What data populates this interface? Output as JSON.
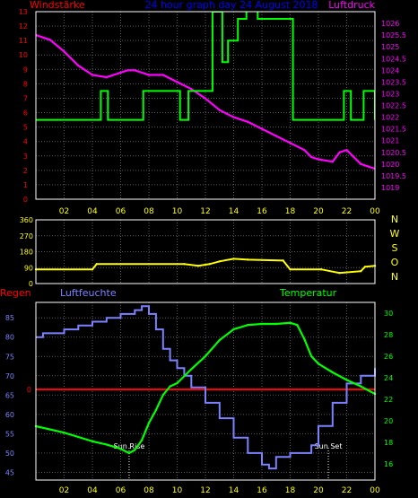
{
  "header": {
    "left_label": "Windstärke",
    "title": "24 hour graph day 24 August 2018",
    "right_label": "Luftdruck"
  },
  "colors": {
    "background": "#000000",
    "frame": "#ffffff",
    "grid": "#5a5a5a",
    "axis_text": "#ffff00",
    "wind": "#00ff00",
    "pressure": "#ff00ff",
    "direction": "#ffff00",
    "humidity": "#7c82ff",
    "temperature": "#00ff00",
    "rain": "#ff0000",
    "wind_label": "#ff0000",
    "title": "#0000ff",
    "pressure_label": "#ff00ff",
    "humidity_label": "#7c82ff",
    "temperature_label": "#00ff00",
    "rain_label": "#ff0000",
    "compass": "#ffff00",
    "sun": "#ffffff"
  },
  "chart_data": [
    {
      "id": "wind_pressure",
      "type": "line",
      "xlim": [
        0,
        24
      ],
      "x_tick_labels": [
        "02",
        "04",
        "06",
        "08",
        "10",
        "12",
        "14",
        "16",
        "18",
        "20",
        "22",
        "00"
      ],
      "grid": true,
      "left_axis": {
        "label": "Windstärke",
        "ylim": [
          0,
          13
        ],
        "ticks": [
          "0",
          "1",
          "2",
          "3",
          "4",
          "5",
          "6",
          "7",
          "8",
          "9",
          "10",
          "11",
          "12",
          "13"
        ]
      },
      "right_axis": {
        "label": "Luftdruck",
        "ylim": [
          1018.5,
          1026.5
        ],
        "ticks": [
          "1019",
          "1019.5",
          "1020",
          "1020.5",
          "1021",
          "1021.5",
          "1022",
          "1022.5",
          "1023",
          "1023.5",
          "1024",
          "1024.5",
          "1025",
          "1025.5",
          "1026"
        ]
      },
      "series": [
        {
          "name": "Windstärke",
          "axis": "left",
          "step": true,
          "x": [
            0,
            4.6,
            5.1,
            7.6,
            10.2,
            10.8,
            12.5,
            13.2,
            13.6,
            14.3,
            14.9,
            15.7,
            18.2,
            21.8,
            22.3,
            23.2,
            24
          ],
          "values": [
            5.5,
            7.5,
            5.5,
            7.5,
            5.5,
            7.5,
            13,
            9.5,
            11,
            12.5,
            15,
            12.5,
            5.5,
            7.5,
            5.5,
            7.5,
            5.5
          ]
        },
        {
          "name": "Luftdruck",
          "axis": "right",
          "x": [
            0,
            1,
            2,
            3,
            4,
            5,
            6,
            6.5,
            7,
            8,
            9,
            10,
            11,
            12,
            13,
            14,
            15,
            16,
            17,
            18,
            19,
            19.5,
            20,
            21,
            21.5,
            22,
            22.5,
            23,
            23.5,
            24
          ],
          "values": [
            1025.5,
            1025.3,
            1024.8,
            1024.2,
            1023.8,
            1023.7,
            1023.9,
            1024.0,
            1024.0,
            1023.8,
            1023.8,
            1023.5,
            1023.2,
            1022.8,
            1022.3,
            1022.0,
            1021.8,
            1021.5,
            1021.2,
            1020.9,
            1020.6,
            1020.3,
            1020.2,
            1020.1,
            1020.5,
            1020.6,
            1020.3,
            1020.0,
            1019.9,
            1019.8
          ]
        }
      ]
    },
    {
      "id": "wind_direction",
      "type": "line",
      "xlim": [
        0,
        24
      ],
      "grid": true,
      "ylim": [
        0,
        360
      ],
      "ticks": [
        "0",
        "90",
        "180",
        "270",
        "360"
      ],
      "compass_labels": [
        "N",
        "W",
        "S",
        "O",
        "N"
      ],
      "series": [
        {
          "name": "Windrichtung",
          "x": [
            0,
            4.0,
            4.3,
            10.5,
            11.5,
            12.3,
            13,
            14,
            15,
            17.5,
            18.0,
            20.2,
            21.5,
            23,
            23.3,
            24
          ],
          "values": [
            80,
            80,
            110,
            110,
            100,
            110,
            125,
            140,
            135,
            130,
            80,
            80,
            60,
            70,
            95,
            100
          ]
        }
      ]
    },
    {
      "id": "humidity_temperature",
      "type": "line",
      "xlim": [
        0,
        24
      ],
      "x_tick_labels": [
        "02",
        "04",
        "06",
        "08",
        "10",
        "12",
        "14",
        "16",
        "18",
        "20",
        "22",
        "00"
      ],
      "grid": true,
      "left_axis": {
        "label": "Luftfeuchte",
        "ylim": [
          43,
          89
        ],
        "ticks": [
          "45",
          "50",
          "55",
          "60",
          "65",
          "70",
          "75",
          "80",
          "85"
        ]
      },
      "right_axis": {
        "label": "Temperatur",
        "ylim": [
          14.5,
          31
        ],
        "ticks": [
          "16",
          "18",
          "20",
          "22",
          "24",
          "26",
          "28",
          "30"
        ]
      },
      "rain": {
        "label": "Regen",
        "value_label": "0",
        "value": 0
      },
      "annotations": [
        {
          "label": "Sun Rise",
          "x": 6.6
        },
        {
          "label": "Sun Set",
          "x": 20.7
        }
      ],
      "series": [
        {
          "name": "Luftfeuchte",
          "axis": "left",
          "step": true,
          "x": [
            0,
            0.5,
            2,
            3,
            4,
            5,
            6,
            7,
            7.5,
            8,
            8.5,
            9,
            9.5,
            10,
            10.5,
            11,
            12,
            13,
            14,
            15,
            16,
            16.5,
            17,
            18,
            19,
            19.5,
            20,
            21,
            22,
            23,
            24
          ],
          "values": [
            80,
            81,
            82,
            83,
            84,
            85,
            86,
            87,
            88,
            86,
            82,
            77,
            74,
            72,
            70,
            67,
            63,
            59,
            54,
            50,
            47,
            46,
            49,
            50,
            50,
            52,
            57,
            63,
            68,
            70,
            72
          ]
        },
        {
          "name": "Temperatur",
          "axis": "right",
          "x": [
            0,
            1,
            2,
            3,
            4,
            5,
            6,
            6.6,
            7,
            7.5,
            8,
            8.5,
            9,
            9.5,
            10,
            11,
            12,
            13,
            14,
            15,
            16,
            17,
            18,
            18.5,
            19,
            19.5,
            20,
            21,
            22,
            23,
            24
          ],
          "values": [
            19.5,
            19.2,
            18.9,
            18.5,
            18.1,
            17.8,
            17.4,
            17.0,
            17.3,
            18.2,
            19.8,
            21.0,
            22.4,
            23.2,
            23.5,
            24.8,
            26.0,
            27.5,
            28.5,
            28.9,
            29.0,
            29.0,
            29.1,
            28.9,
            27.6,
            26.0,
            25.3,
            24.5,
            23.8,
            23.2,
            22.5
          ]
        }
      ]
    }
  ]
}
